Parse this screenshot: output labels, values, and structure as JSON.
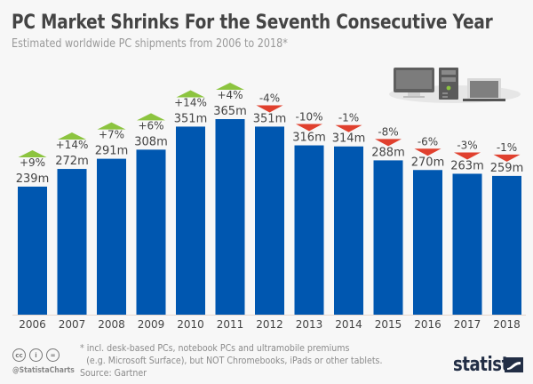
{
  "header": {
    "title": "PC Market Shrinks For the Seventh Consecutive Year",
    "subtitle": "Estimated worldwide PC shipments from 2006 to 2018*"
  },
  "chart_data": {
    "type": "bar",
    "title": "PC Market Shrinks For the Seventh Consecutive Year",
    "subtitle": "Estimated worldwide PC shipments from 2006 to 2018*",
    "xlabel": "",
    "ylabel": "",
    "unit": "m",
    "grid": false,
    "categories": [
      "2006",
      "2007",
      "2008",
      "2009",
      "2010",
      "2011",
      "2012",
      "2013",
      "2014",
      "2015",
      "2016",
      "2017",
      "2018"
    ],
    "values": [
      239,
      272,
      291,
      308,
      351,
      365,
      351,
      316,
      314,
      288,
      270,
      263,
      259
    ],
    "value_labels": [
      "239m",
      "272m",
      "291m",
      "308m",
      "351m",
      "365m",
      "351m",
      "316m",
      "314m",
      "288m",
      "270m",
      "263m",
      "259m"
    ],
    "change_labels": [
      "+9%",
      "+14%",
      "+7%",
      "+6%",
      "+14%",
      "+4%",
      "-4%",
      "-10%",
      "-1%",
      "-8%",
      "-6%",
      "-3%",
      "-1%"
    ],
    "ylim": [
      0,
      365
    ],
    "colors": {
      "bar": "#0057b0",
      "up": "#8cc43f",
      "down": "#e0402e",
      "baseline": "#e5d6cc"
    },
    "illustration": "desktop-tower-laptop-icon"
  },
  "footer": {
    "note_line1": "* incl. desk-based PCs, notebook PCs and ultramobile premiums",
    "note_line2": "(e.g. Microsoft Surface), but NOT Chromebooks, iPads or other tablets.",
    "source": "Source: Gartner",
    "handle": "@StatistaCharts",
    "license_icons": [
      "cc",
      "by",
      "nd"
    ],
    "brand": "statista"
  }
}
